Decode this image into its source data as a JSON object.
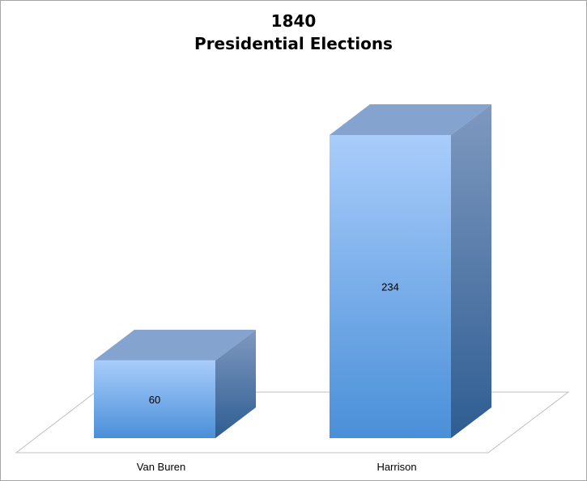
{
  "chart_data": {
    "type": "bar",
    "title": [
      "1840",
      "Presidential Elections"
    ],
    "categories": [
      "Van Buren",
      "Harrison"
    ],
    "values": [
      60,
      234
    ],
    "data_labels": [
      "60",
      "234"
    ],
    "xlabel": "",
    "ylabel": "",
    "ylim": [
      0,
      234
    ],
    "grid": false,
    "legend": "none",
    "three_d": true
  },
  "colors": {
    "bar_front_top": "#a9cdfb",
    "bar_front_bottom": "#4a8fd8",
    "bar_top": "#85a3cf",
    "bar_side_top": "#7f99c0",
    "bar_side_bottom": "#2e5d92",
    "floor_stroke": "#bfbfbf",
    "frame_border": "#a6a6a6"
  }
}
